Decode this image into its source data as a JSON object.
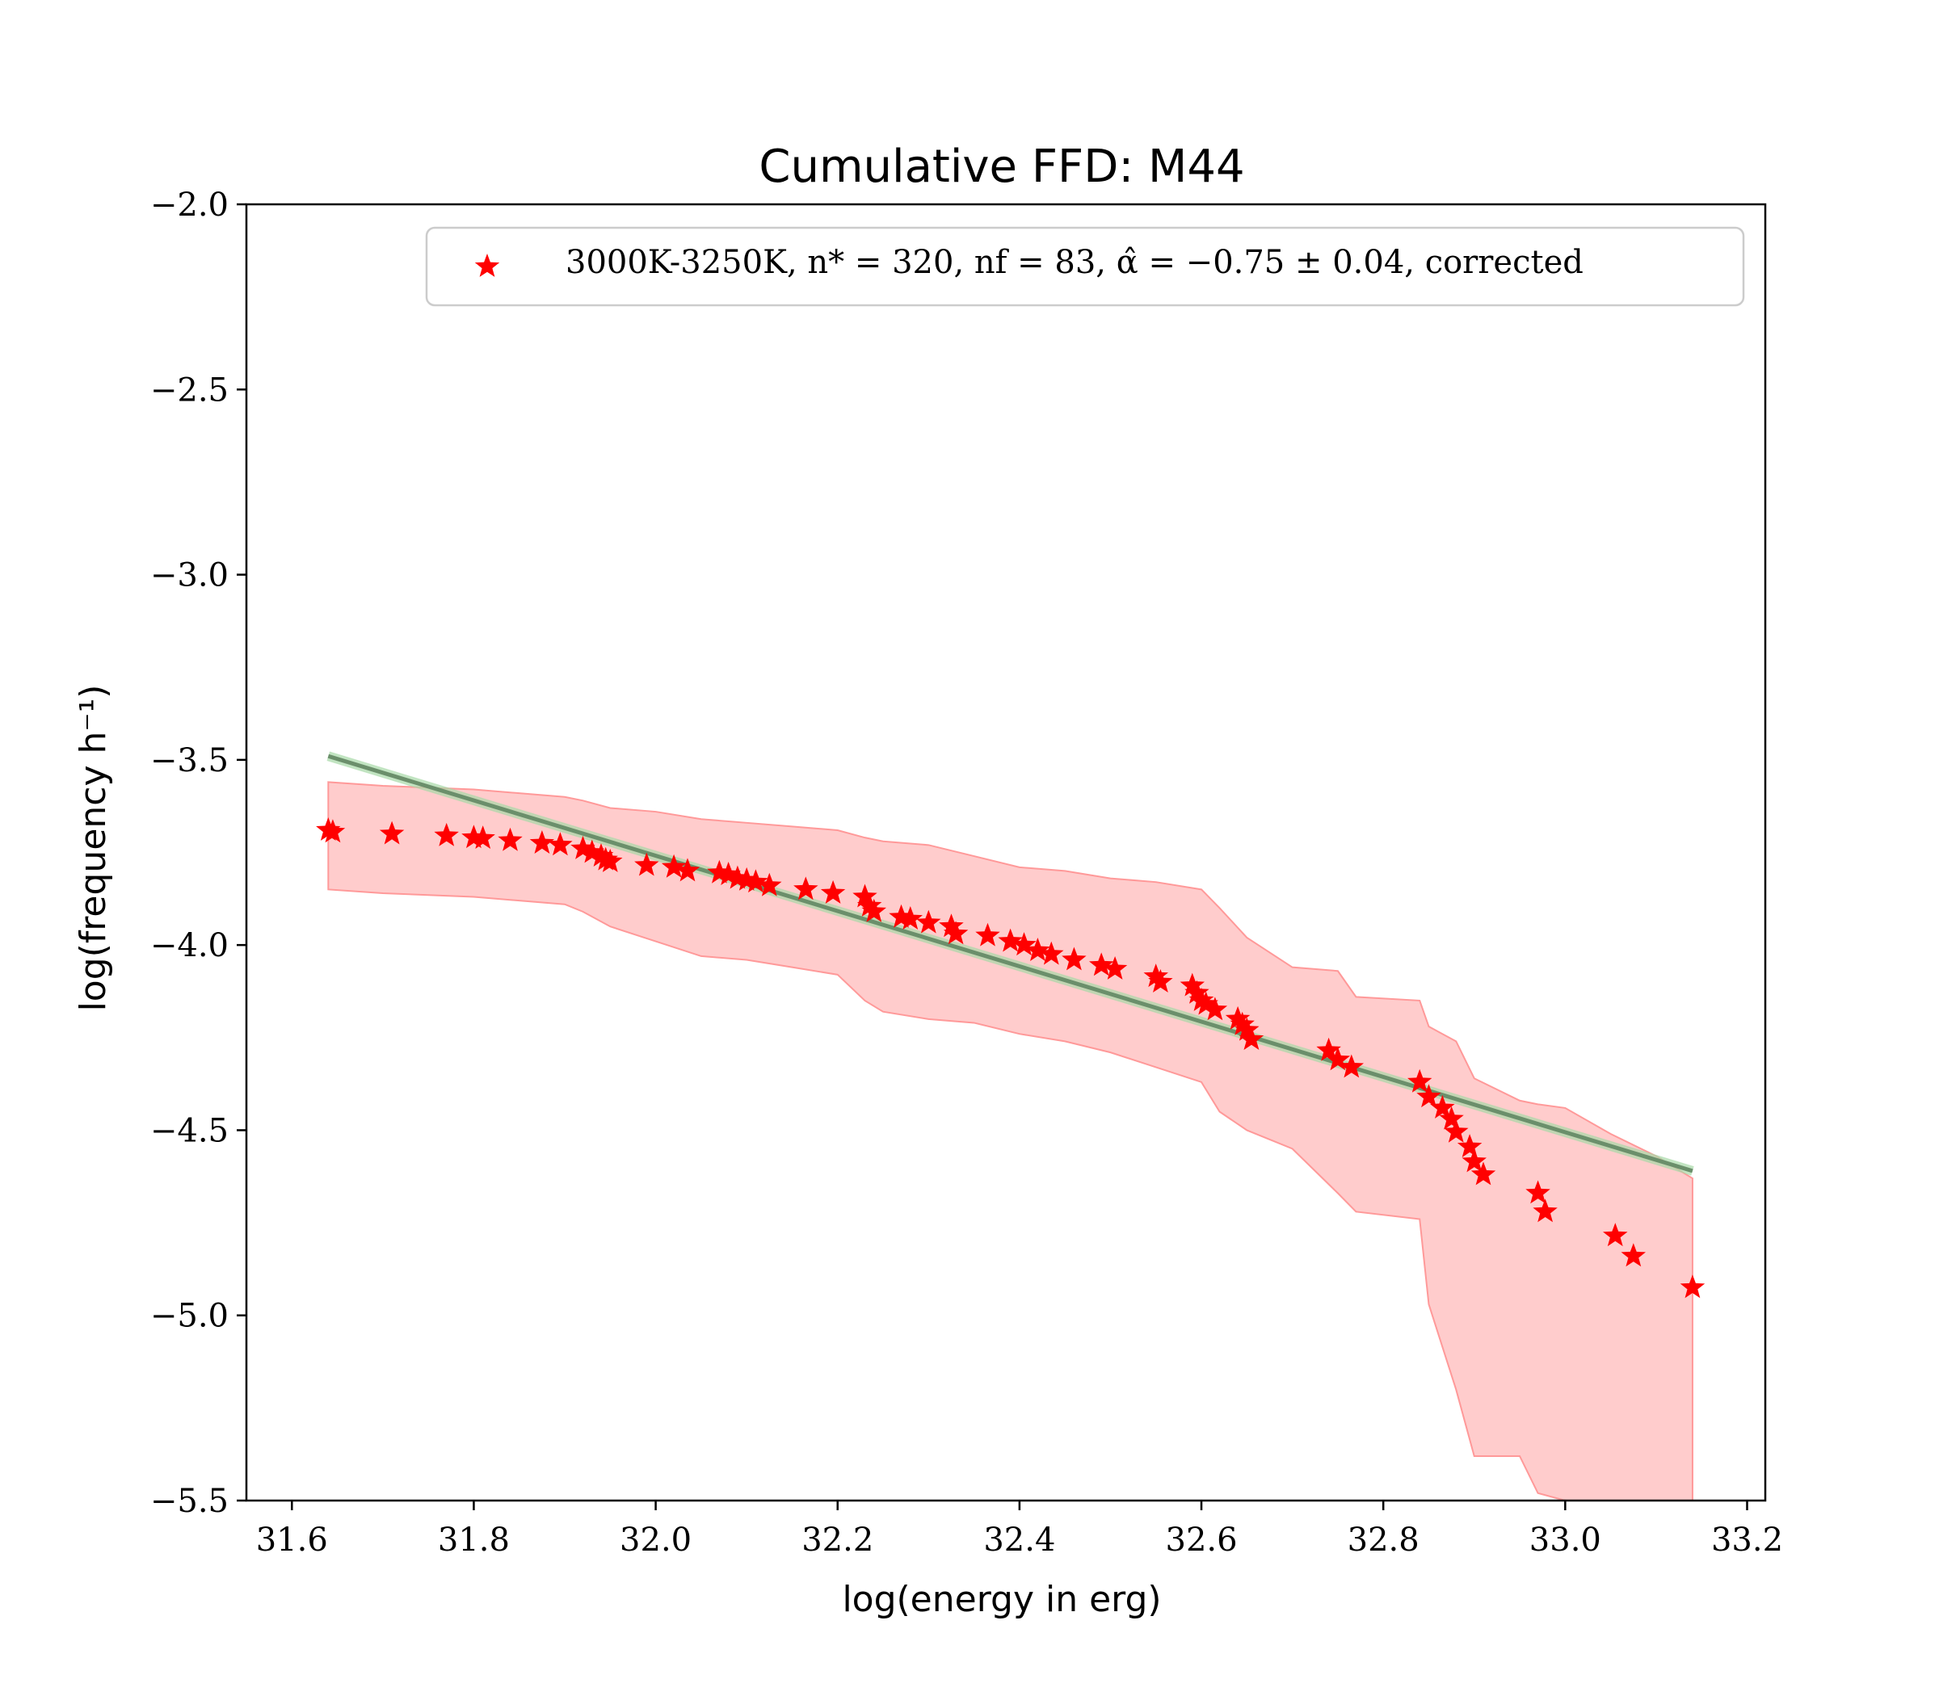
{
  "chart_data": {
    "type": "scatter",
    "title": "Cumulative FFD: M44",
    "xlabel": "log(energy in erg)",
    "ylabel": "log(frequency h⁻¹)",
    "xlim": [
      31.55,
      33.22
    ],
    "ylim": [
      -5.5,
      -2.0
    ],
    "xticks": [
      31.6,
      31.8,
      32.0,
      32.2,
      32.4,
      32.6,
      32.8,
      33.0,
      33.2
    ],
    "xtick_labels": [
      "31.6",
      "31.8",
      "32.0",
      "32.2",
      "32.4",
      "32.6",
      "32.8",
      "33.0",
      "33.2"
    ],
    "yticks": [
      -2.0,
      -2.5,
      -3.0,
      -3.5,
      -4.0,
      -4.5,
      -5.0,
      -5.5
    ],
    "ytick_labels": [
      "−2.0",
      "−2.5",
      "−3.0",
      "−3.5",
      "−4.0",
      "−4.5",
      "−5.0",
      "−5.5"
    ],
    "grid": false,
    "legend_position": "top-right",
    "series": [
      {
        "name": "3000K-3250K, n₁ = 320, n_f = 83, α̂ = −0.75 ± 0.04, corrected",
        "legend_label": "3000K-3250K, n* = 320, nf = 83, α̂ = −0.75 ± 0.04, corrected",
        "marker": "star",
        "color": "#ff0000",
        "x": [
          31.64,
          31.645,
          31.71,
          31.77,
          31.8,
          31.81,
          31.84,
          31.875,
          31.895,
          31.92,
          31.93,
          31.94,
          31.945,
          31.95,
          31.99,
          32.02,
          32.035,
          32.07,
          32.08,
          32.09,
          32.1,
          32.11,
          32.125,
          32.165,
          32.195,
          32.23,
          32.235,
          32.24,
          32.27,
          32.28,
          32.3,
          32.325,
          32.33,
          32.365,
          32.39,
          32.405,
          32.42,
          32.435,
          32.46,
          32.49,
          32.505,
          32.55,
          32.555,
          32.59,
          32.595,
          32.6,
          32.605,
          32.615,
          32.64,
          32.645,
          32.65,
          32.655,
          32.74,
          32.75,
          32.765,
          32.84,
          32.85,
          32.865,
          32.875,
          32.88,
          32.895,
          32.9,
          32.91,
          32.97,
          32.978,
          33.055,
          33.075,
          33.14
        ],
        "y": [
          -3.69,
          -3.695,
          -3.7,
          -3.705,
          -3.71,
          -3.712,
          -3.718,
          -3.725,
          -3.73,
          -3.74,
          -3.75,
          -3.76,
          -3.77,
          -3.775,
          -3.785,
          -3.79,
          -3.8,
          -3.805,
          -3.81,
          -3.82,
          -3.825,
          -3.83,
          -3.84,
          -3.85,
          -3.86,
          -3.87,
          -3.895,
          -3.91,
          -3.925,
          -3.93,
          -3.94,
          -3.95,
          -3.97,
          -3.975,
          -3.99,
          -4.0,
          -4.015,
          -4.025,
          -4.04,
          -4.055,
          -4.065,
          -4.085,
          -4.1,
          -4.11,
          -4.13,
          -4.15,
          -4.16,
          -4.175,
          -4.2,
          -4.215,
          -4.23,
          -4.255,
          -4.285,
          -4.31,
          -4.33,
          -4.37,
          -4.41,
          -4.44,
          -4.47,
          -4.505,
          -4.545,
          -4.585,
          -4.62,
          -4.67,
          -4.72,
          -4.785,
          -4.84,
          -4.925
        ]
      }
    ],
    "fit_line": {
      "x": [
        31.64,
        33.14
      ],
      "y": [
        -3.49,
        -4.61
      ],
      "color": "#6b8f6b",
      "glow_color": "#a6d9a6"
    },
    "band": {
      "color": "#ff9999",
      "x": [
        31.64,
        31.7,
        31.8,
        31.9,
        31.92,
        31.95,
        32.0,
        32.05,
        32.1,
        32.15,
        32.2,
        32.23,
        32.25,
        32.3,
        32.35,
        32.4,
        32.45,
        32.5,
        32.55,
        32.6,
        32.62,
        32.65,
        32.7,
        32.75,
        32.77,
        32.84,
        32.85,
        32.88,
        32.9,
        32.95,
        32.97,
        33.0,
        33.05,
        33.1,
        33.14
      ],
      "upper": [
        -3.56,
        -3.57,
        -3.58,
        -3.6,
        -3.61,
        -3.63,
        -3.64,
        -3.66,
        -3.67,
        -3.68,
        -3.69,
        -3.71,
        -3.72,
        -3.73,
        -3.76,
        -3.79,
        -3.8,
        -3.82,
        -3.83,
        -3.85,
        -3.9,
        -3.98,
        -4.06,
        -4.07,
        -4.14,
        -4.15,
        -4.22,
        -4.26,
        -4.36,
        -4.42,
        -4.43,
        -4.44,
        -4.51,
        -4.57,
        -4.63
      ],
      "lower": [
        -3.85,
        -3.86,
        -3.87,
        -3.89,
        -3.91,
        -3.95,
        -3.99,
        -4.03,
        -4.04,
        -4.06,
        -4.08,
        -4.15,
        -4.18,
        -4.2,
        -4.21,
        -4.24,
        -4.26,
        -4.29,
        -4.33,
        -4.37,
        -4.45,
        -4.5,
        -4.55,
        -4.67,
        -4.72,
        -4.74,
        -4.97,
        -5.2,
        -5.38,
        -5.38,
        -5.48,
        -5.5,
        -5.5,
        -5.5,
        -5.5
      ]
    }
  }
}
